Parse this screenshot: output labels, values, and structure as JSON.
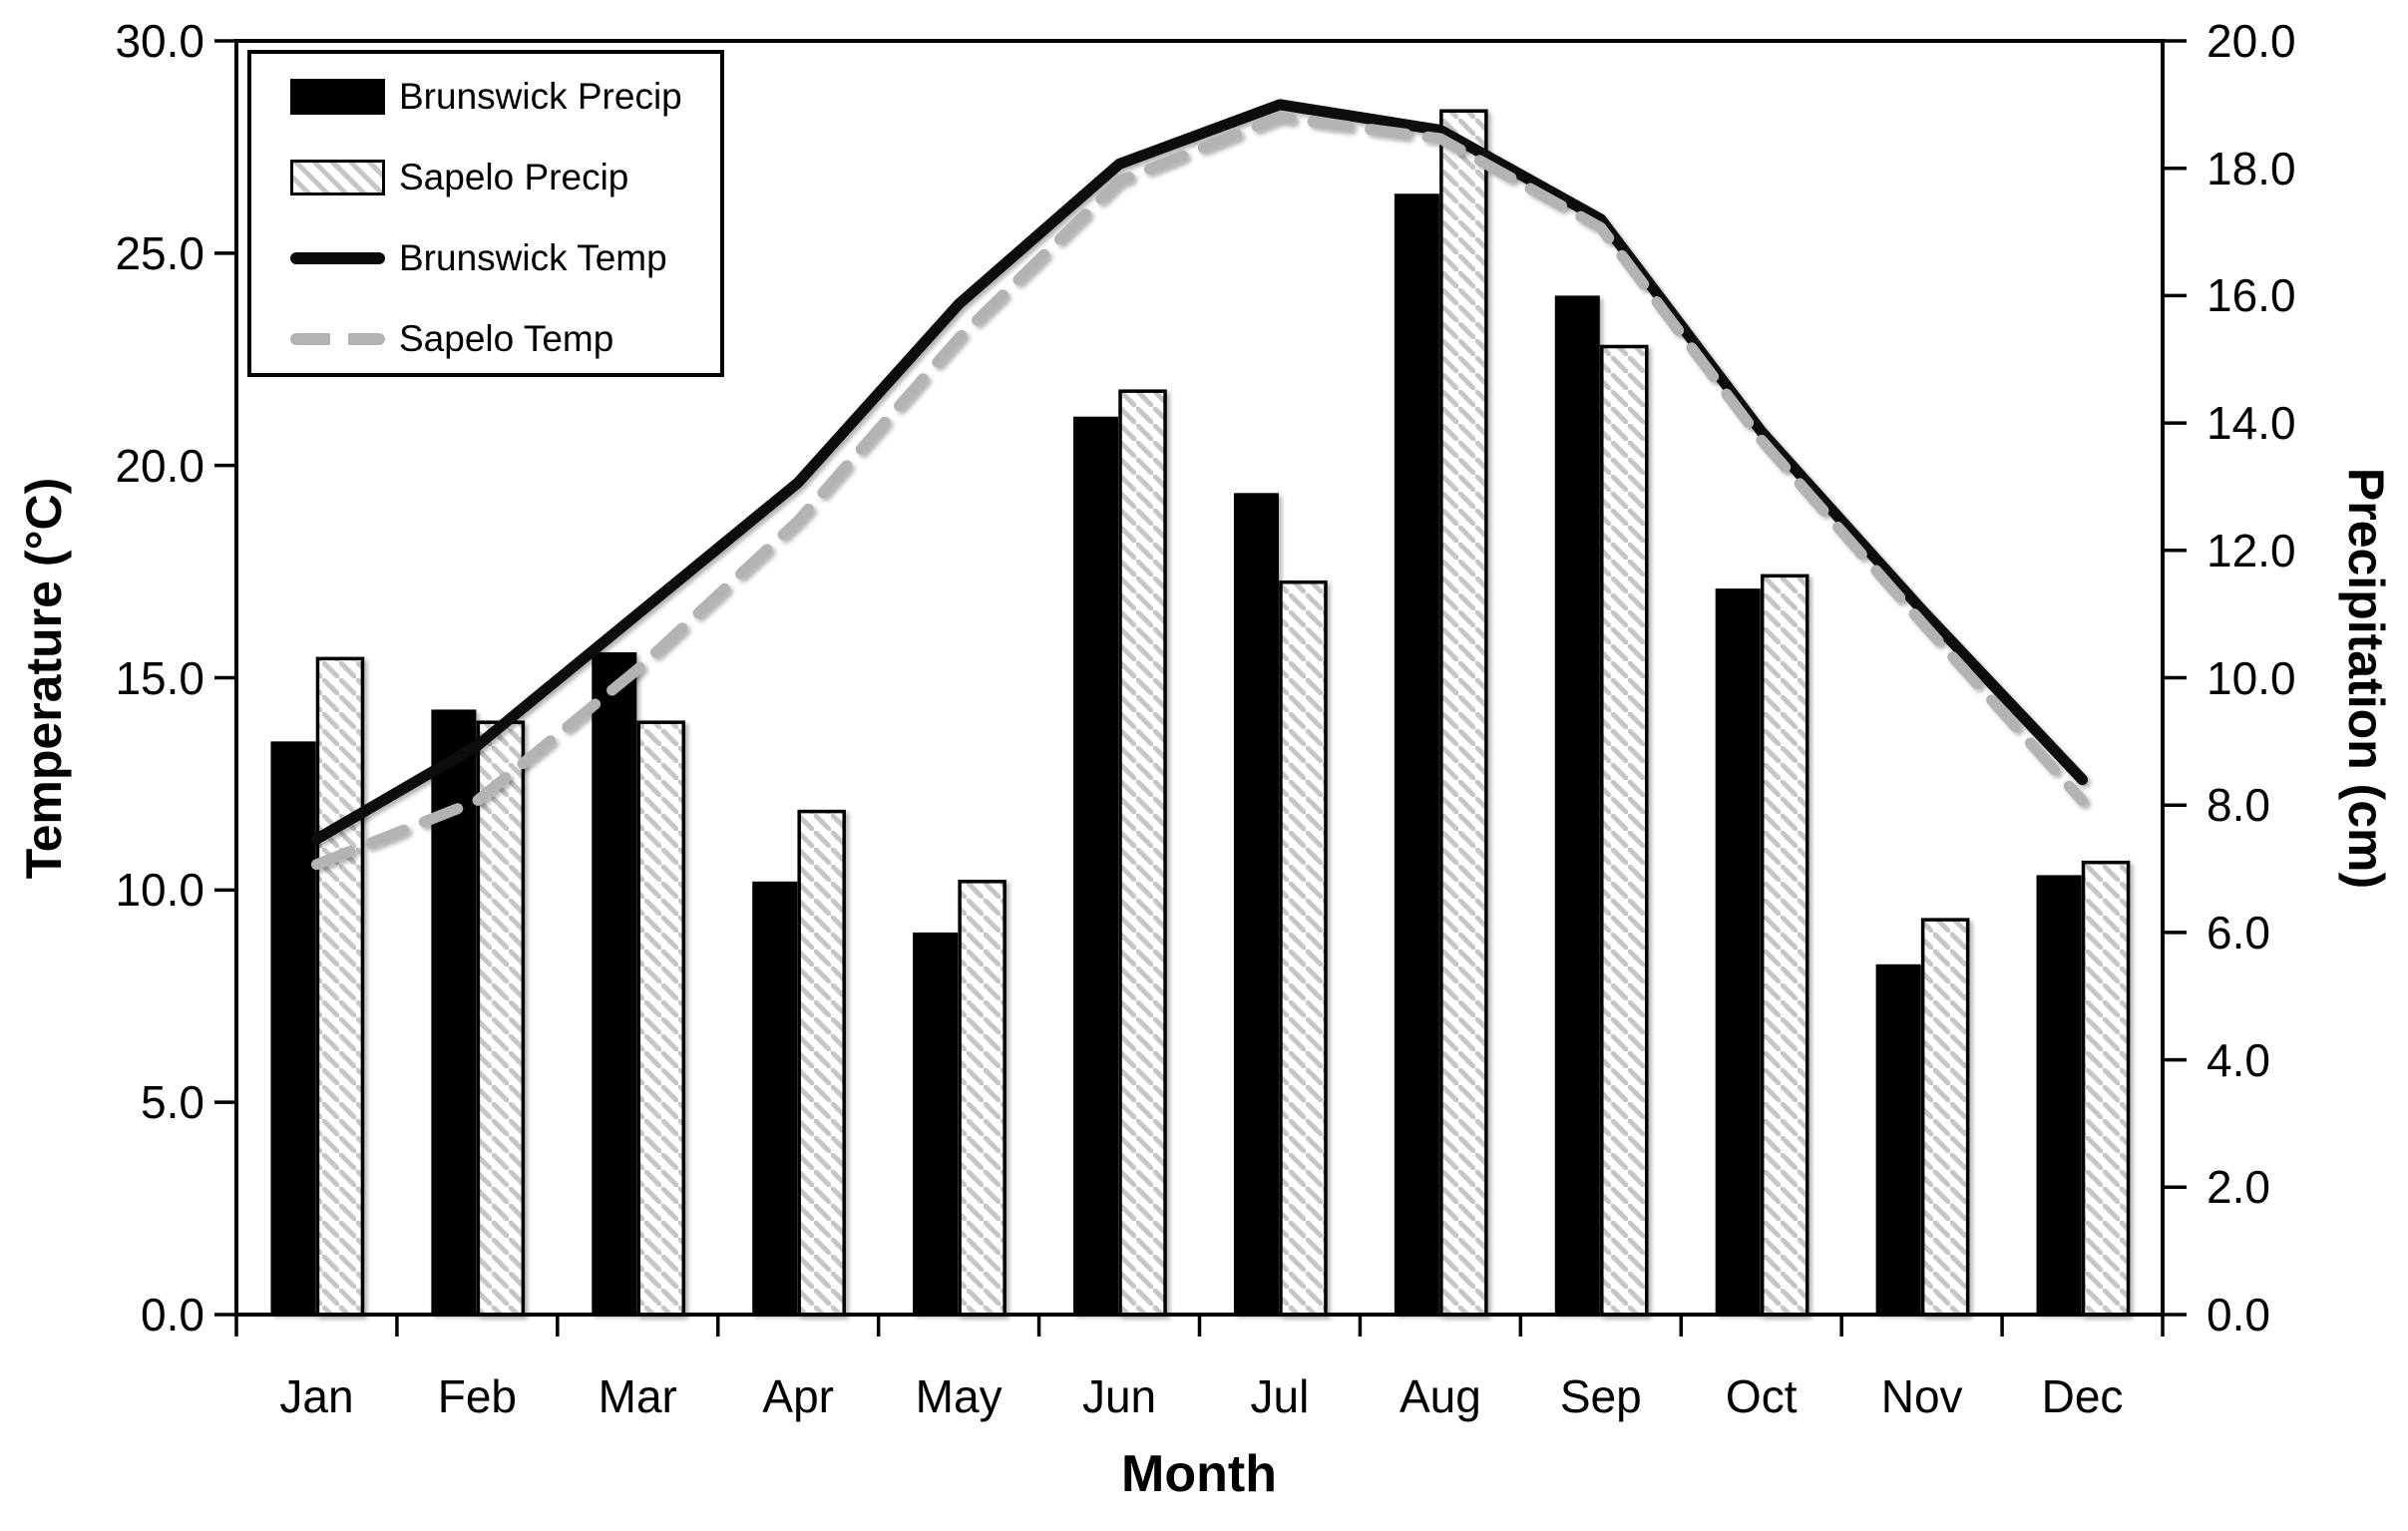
{
  "chart_data": {
    "type": "combo-bar-line",
    "categories": [
      "Jan",
      "Feb",
      "Mar",
      "Apr",
      "May",
      "Jun",
      "Jul",
      "Aug",
      "Sep",
      "Oct",
      "Nov",
      "Dec"
    ],
    "series": [
      {
        "name": "Brunswick Precip",
        "type": "bar",
        "axis": "right",
        "style": "solid-black",
        "values": [
          9.0,
          9.5,
          10.4,
          6.8,
          6.0,
          14.1,
          12.9,
          17.6,
          16.0,
          11.4,
          5.5,
          6.9
        ]
      },
      {
        "name": "Sapelo Precip",
        "type": "bar",
        "axis": "right",
        "style": "gray-diagonal-hatch",
        "values": [
          10.3,
          9.3,
          9.3,
          7.9,
          6.8,
          14.5,
          11.5,
          18.9,
          15.2,
          11.6,
          6.2,
          7.1
        ]
      },
      {
        "name": "Brunswick Temp",
        "type": "line",
        "axis": "left",
        "style": "solid-black-line",
        "values": [
          11.2,
          13.4,
          16.5,
          19.6,
          23.8,
          27.1,
          28.5,
          27.9,
          25.8,
          20.8,
          16.6,
          12.6
        ]
      },
      {
        "name": "Sapelo Temp",
        "type": "line",
        "axis": "left",
        "style": "dashed-gray-line",
        "values": [
          10.6,
          12.1,
          15.2,
          18.7,
          23.0,
          26.7,
          28.2,
          27.7,
          25.6,
          20.6,
          16.3,
          12.1
        ]
      }
    ],
    "xlabel": "Month",
    "left_axis": {
      "label": "Temperature (°C)",
      "min": 0,
      "max": 30,
      "step": 5,
      "tick_labels": [
        "30.0",
        "25.0",
        "20.0",
        "15.0",
        "10.0",
        "5.0",
        "0.0"
      ]
    },
    "right_axis": {
      "label": "Precipitation (cm)",
      "min": 0,
      "max": 20,
      "step": 2,
      "tick_labels": [
        "20.0",
        "18.0",
        "16.0",
        "14.0",
        "12.0",
        "10.0",
        "8.0",
        "6.0",
        "4.0",
        "2.0",
        "0.0"
      ]
    },
    "legend": {
      "position": "top-left",
      "entries": [
        "Brunswick Precip",
        "Sapelo Precip",
        "Brunswick Temp",
        "Sapelo Temp"
      ]
    },
    "grid": true
  },
  "colors": {
    "bar_brunswick": "#000000",
    "bar_sapelo_hatch": "#c6c6c6",
    "line_brunswick": "#0a0a0a",
    "line_sapelo": "#b3b3b3",
    "gridline": "#a6a6a6",
    "frame": "#000000",
    "background": "#ffffff"
  }
}
